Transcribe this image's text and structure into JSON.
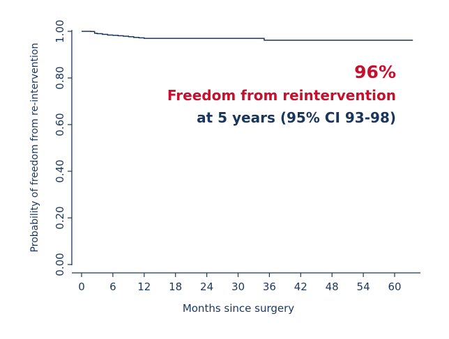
{
  "chart_data": {
    "type": "line",
    "line_shape": "step",
    "title": "",
    "xlabel": "Months since surgery",
    "ylabel": "Probability of freedom from re-intervention",
    "xlim": [
      0,
      65
    ],
    "ylim": [
      0,
      1.0
    ],
    "x_ticks": [
      0,
      6,
      12,
      18,
      24,
      30,
      36,
      42,
      48,
      54,
      60
    ],
    "x_tick_labels": [
      "0",
      "6",
      "12",
      "18",
      "24",
      "30",
      "36",
      "42",
      "48",
      "54",
      "60"
    ],
    "y_ticks": [
      0,
      0.2,
      0.4,
      0.6,
      0.8,
      1.0
    ],
    "y_tick_labels": [
      "0.00",
      "0.20",
      "0.40",
      "0.60",
      "0.80",
      "1.00"
    ],
    "grid": false,
    "legend": "none",
    "series": [
      {
        "color": "#1b365d",
        "x": [
          0,
          1.8,
          2.5,
          3,
          4,
          5,
          6,
          7,
          8,
          9,
          10,
          11,
          12,
          35,
          63.5
        ],
        "y": [
          1.0,
          0.999,
          0.992,
          0.99,
          0.987,
          0.984,
          0.983,
          0.981,
          0.979,
          0.977,
          0.974,
          0.972,
          0.97,
          0.962,
          0.962
        ]
      }
    ],
    "annotations": [
      {
        "text": "96%",
        "color": "#c8102e"
      },
      {
        "text": "Freedom from reintervention",
        "color": "#c8102e"
      },
      {
        "text": "at 5 years (95% CI 93-98)",
        "color": "#1b365d"
      }
    ]
  },
  "colors": {
    "axis": "#1b365d",
    "line": "#1b365d",
    "highlight": "#c8102e"
  }
}
